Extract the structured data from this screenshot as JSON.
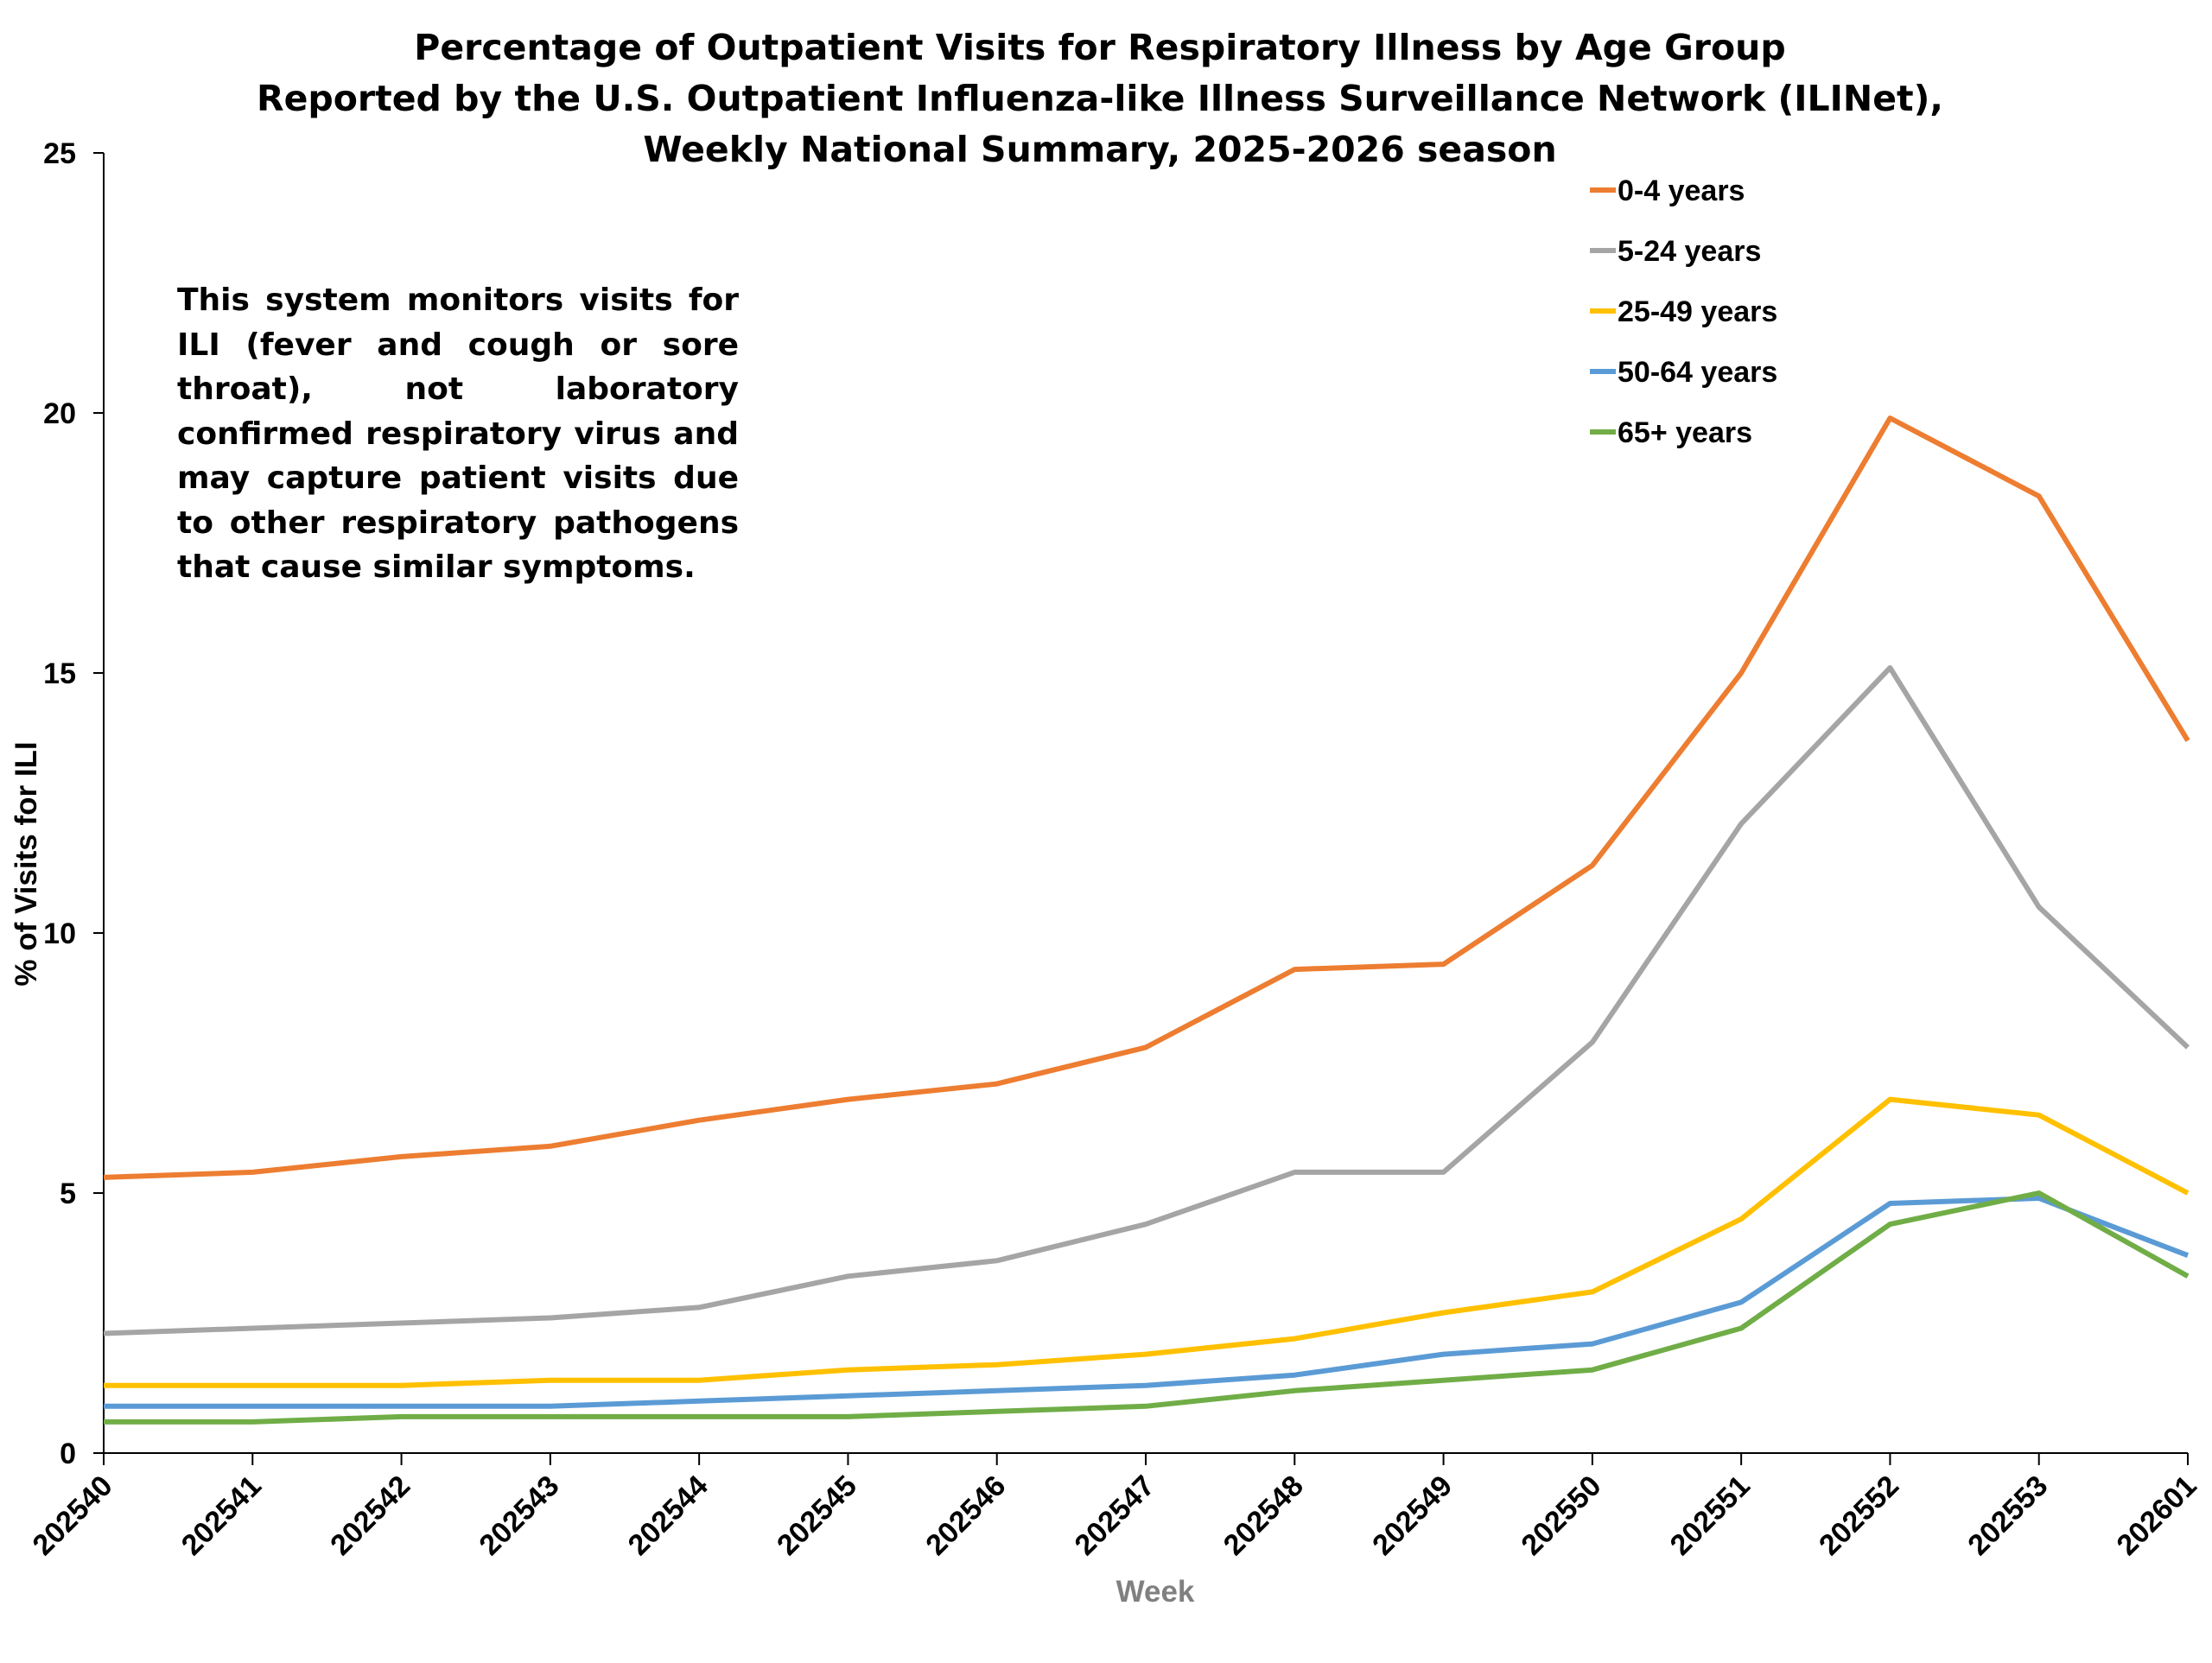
{
  "chart_data": {
    "type": "line",
    "title": [
      "Percentage of Outpatient Visits for Respiratory Illness by Age Group",
      "Reported by the U.S. Outpatient Influenza-like Illness Surveillance Network (ILINet),",
      "Weekly National Summary, 2025-2026 season"
    ],
    "annotation": "This system monitors visits for ILI (fever and cough or sore throat), not laboratory confirmed respiratory virus and may capture patient visits due to other respiratory pathogens that cause similar symptoms.",
    "xlabel": "Week",
    "ylabel": "% of Visits for ILI",
    "ylim": [
      0,
      25
    ],
    "yticks": [
      0,
      5,
      10,
      15,
      20,
      25
    ],
    "grid": false,
    "legend_position": "top-right",
    "categories": [
      "202540",
      "202541",
      "202542",
      "202543",
      "202544",
      "202545",
      "202546",
      "202547",
      "202548",
      "202549",
      "202550",
      "202551",
      "202552",
      "202553",
      "202601"
    ],
    "series": [
      {
        "name": "0-4 years",
        "color": "#ED7D31",
        "values": [
          5.3,
          5.4,
          5.7,
          5.9,
          6.4,
          6.8,
          7.1,
          7.8,
          9.3,
          9.4,
          11.3,
          15.0,
          19.9,
          18.4,
          13.7
        ]
      },
      {
        "name": "5-24 years",
        "color": "#A5A5A5",
        "values": [
          2.3,
          2.4,
          2.5,
          2.6,
          2.8,
          3.4,
          3.7,
          4.4,
          5.4,
          5.4,
          7.9,
          12.1,
          15.1,
          10.5,
          7.8
        ]
      },
      {
        "name": "25-49 years",
        "color": "#FFC000",
        "values": [
          1.3,
          1.3,
          1.3,
          1.4,
          1.4,
          1.6,
          1.7,
          1.9,
          2.2,
          2.7,
          3.1,
          4.5,
          6.8,
          6.5,
          5.0
        ]
      },
      {
        "name": "50-64 years",
        "color": "#5B9BD5",
        "values": [
          0.9,
          0.9,
          0.9,
          0.9,
          1.0,
          1.1,
          1.2,
          1.3,
          1.5,
          1.9,
          2.1,
          2.9,
          4.8,
          4.9,
          3.8
        ]
      },
      {
        "name": "65+ years",
        "color": "#70AD47",
        "values": [
          0.6,
          0.6,
          0.7,
          0.7,
          0.7,
          0.7,
          0.8,
          0.9,
          1.2,
          1.4,
          1.6,
          2.4,
          4.4,
          5.0,
          3.4
        ]
      }
    ],
    "axis_color": "#000000",
    "xlabel_color": "#808080"
  }
}
